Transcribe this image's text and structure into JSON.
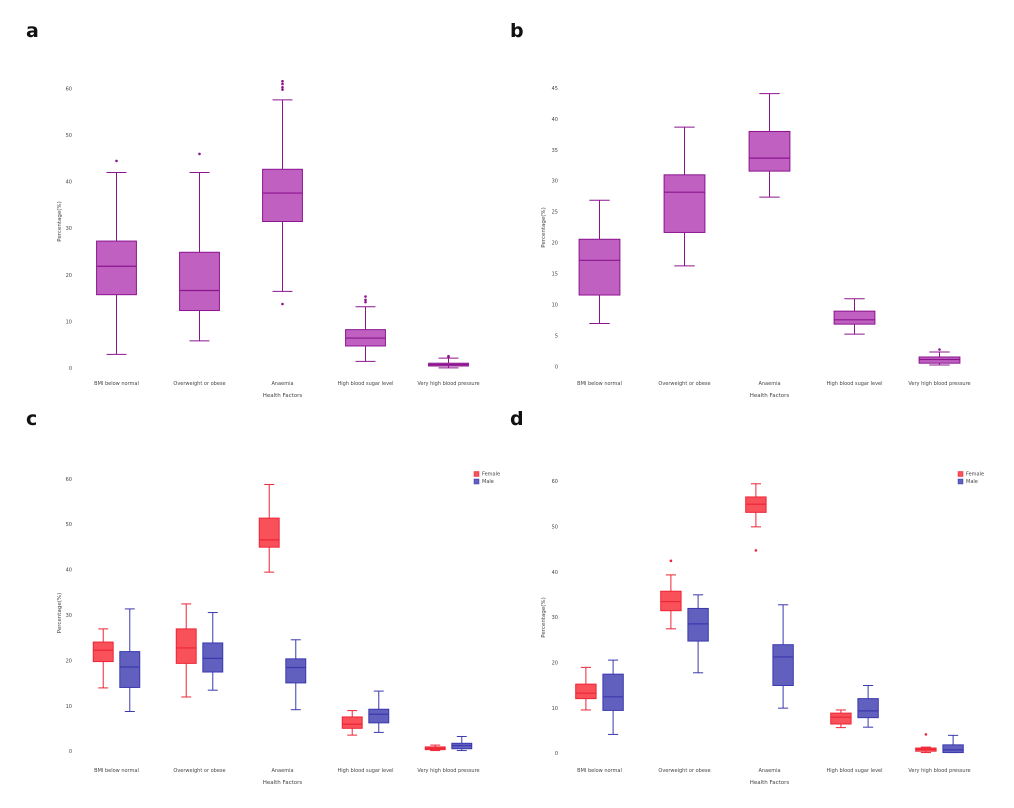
{
  "panels": [
    "a",
    "b",
    "c",
    "d"
  ],
  "chart_data": [
    {
      "panel": "a",
      "type": "box",
      "xlabel": "Health Factors",
      "ylabel": "Percentage(%)",
      "ylim": [
        -1,
        64
      ],
      "yticks": [
        0,
        10,
        20,
        30,
        40,
        50,
        60
      ],
      "categories": [
        "BMI below normal",
        "Overweight or obese",
        "Anaemia",
        "High blood sugar level",
        "Very high blood pressure"
      ],
      "series": [
        {
          "color": "#c061c1",
          "stroke": "#8b148f",
          "boxes": [
            {
              "min": 3,
              "q1": 15.8,
              "median": 21.9,
              "q3": 27.3,
              "max": 42,
              "outliers": [
                44.5
              ]
            },
            {
              "min": 5.9,
              "q1": 12.4,
              "median": 16.7,
              "q3": 24.9,
              "max": 42,
              "outliers": [
                46
              ]
            },
            {
              "min": 16.5,
              "q1": 31.5,
              "median": 37.6,
              "q3": 42.7,
              "max": 57.6,
              "outliers": [
                13.8,
                59.8,
                60.3,
                61,
                61.6
              ]
            },
            {
              "min": 1.5,
              "q1": 4.8,
              "median": 6.5,
              "q3": 8.3,
              "max": 13.2,
              "outliers": [
                14.2,
                14.7,
                15.4
              ]
            },
            {
              "min": 0.1,
              "q1": 0.5,
              "median": 0.8,
              "q3": 1.1,
              "max": 2.2,
              "outliers": [
                2.4,
                2.6
              ]
            }
          ]
        }
      ]
    },
    {
      "panel": "b",
      "type": "box",
      "xlabel": "Health Factors",
      "ylabel": "Percentage(%)",
      "ylim": [
        -0.5,
        45.5
      ],
      "yticks": [
        0,
        5,
        10,
        15,
        20,
        25,
        30,
        35,
        40,
        45
      ],
      "categories": [
        "BMI below normal",
        "Overweight or obese",
        "Anaemia",
        "High blood sugar level",
        "Very high blood pressure"
      ],
      "series": [
        {
          "color": "#c061c1",
          "stroke": "#8b148f",
          "boxes": [
            {
              "min": 7,
              "q1": 11.6,
              "median": 17.2,
              "q3": 20.6,
              "max": 26.9,
              "outliers": []
            },
            {
              "min": 16.3,
              "q1": 21.7,
              "median": 28.2,
              "q3": 31,
              "max": 38.7,
              "outliers": []
            },
            {
              "min": 27.4,
              "q1": 31.6,
              "median": 33.7,
              "q3": 38,
              "max": 44.1,
              "outliers": []
            },
            {
              "min": 5.3,
              "q1": 6.9,
              "median": 7.6,
              "q3": 9,
              "max": 11,
              "outliers": []
            },
            {
              "min": 0.3,
              "q1": 0.6,
              "median": 1.2,
              "q3": 1.6,
              "max": 2.4,
              "outliers": [
                2.8
              ]
            }
          ]
        }
      ]
    },
    {
      "panel": "c",
      "type": "box",
      "xlabel": "Health Factors",
      "ylabel": "Percentage(%)",
      "ylim": [
        -1,
        62
      ],
      "yticks": [
        0,
        10,
        20,
        30,
        40,
        50,
        60
      ],
      "categories": [
        "BMI below normal",
        "Overweight or obese",
        "Anaemia",
        "High blood sugar level",
        "Very high blood pressure"
      ],
      "legend": {
        "position": "top-right"
      },
      "series": [
        {
          "name": "Female",
          "color": "#f8515a",
          "stroke": "#ee2535",
          "boxes": [
            {
              "min": 14,
              "q1": 19.8,
              "median": 22.3,
              "q3": 24.1,
              "max": 27,
              "outliers": []
            },
            {
              "min": 12,
              "q1": 19.4,
              "median": 22.8,
              "q3": 27,
              "max": 32.5,
              "outliers": []
            },
            {
              "min": 39.5,
              "q1": 45,
              "median": 46.6,
              "q3": 51.4,
              "max": 58.8,
              "outliers": []
            },
            {
              "min": 3.6,
              "q1": 5.1,
              "median": 6,
              "q3": 7.6,
              "max": 9,
              "outliers": []
            },
            {
              "min": 0.2,
              "q1": 0.4,
              "median": 0.7,
              "q3": 1,
              "max": 1.4,
              "outliers": []
            }
          ]
        },
        {
          "name": "Male",
          "color": "#6160bf",
          "stroke": "#3a39ad",
          "boxes": [
            {
              "min": 8.8,
              "q1": 14.1,
              "median": 18.6,
              "q3": 22,
              "max": 31.4,
              "outliers": []
            },
            {
              "min": 13.5,
              "q1": 17.5,
              "median": 20.5,
              "q3": 23.9,
              "max": 30.6,
              "outliers": []
            },
            {
              "min": 9.2,
              "q1": 15.1,
              "median": 18.5,
              "q3": 20.4,
              "max": 24.6,
              "outliers": []
            },
            {
              "min": 4.2,
              "q1": 6.3,
              "median": 8.2,
              "q3": 9.3,
              "max": 13.3,
              "outliers": []
            },
            {
              "min": 0.2,
              "q1": 0.6,
              "median": 1.3,
              "q3": 1.8,
              "max": 3.3,
              "outliers": []
            }
          ]
        }
      ]
    },
    {
      "panel": "d",
      "type": "box",
      "xlabel": "Health Factors",
      "ylabel": "Percentage(%)",
      "ylim": [
        -1,
        61
      ],
      "yticks": [
        0,
        10,
        20,
        30,
        40,
        50,
        60
      ],
      "categories": [
        "BMI below normal",
        "Overweight or obese",
        "Anaemia",
        "High blood sugar level",
        "Very high blood pressure"
      ],
      "legend": {
        "position": "top-right"
      },
      "series": [
        {
          "name": "Female",
          "color": "#f8515a",
          "stroke": "#ee2535",
          "boxes": [
            {
              "min": 9.6,
              "q1": 12.1,
              "median": 13.3,
              "q3": 15.3,
              "max": 19,
              "outliers": []
            },
            {
              "min": 27.5,
              "q1": 31.5,
              "median": 33.5,
              "q3": 35.8,
              "max": 39.4,
              "outliers": [
                42.5
              ]
            },
            {
              "min": 50,
              "q1": 53.2,
              "median": 55,
              "q3": 56.6,
              "max": 59.5,
              "outliers": [
                44.8
              ]
            },
            {
              "min": 5.7,
              "q1": 6.5,
              "median": 8,
              "q3": 8.9,
              "max": 9.6,
              "outliers": []
            },
            {
              "min": 0.2,
              "q1": 0.5,
              "median": 0.9,
              "q3": 1.2,
              "max": 1.4,
              "outliers": [
                4.2
              ]
            }
          ]
        },
        {
          "name": "Male",
          "color": "#6160bf",
          "stroke": "#3a39ad",
          "boxes": [
            {
              "min": 4.2,
              "q1": 9.5,
              "median": 12.5,
              "q3": 17.5,
              "max": 20.6,
              "outliers": []
            },
            {
              "min": 17.8,
              "q1": 24.8,
              "median": 28.6,
              "q3": 32,
              "max": 35,
              "outliers": []
            },
            {
              "min": 10,
              "q1": 15,
              "median": 21.3,
              "q3": 24,
              "max": 32.8,
              "outliers": []
            },
            {
              "min": 5.8,
              "q1": 7.9,
              "median": 9.4,
              "q3": 12.1,
              "max": 15,
              "outliers": []
            },
            {
              "min": 0.2,
              "q1": 0.2,
              "median": 0.8,
              "q3": 1.9,
              "max": 4,
              "outliers": []
            }
          ]
        }
      ]
    }
  ]
}
